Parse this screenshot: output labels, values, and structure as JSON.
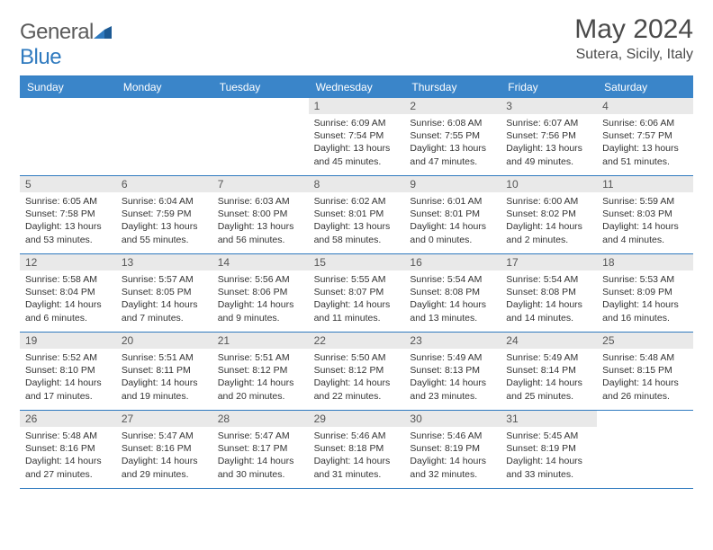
{
  "brand": {
    "text_gray": "General",
    "text_blue": "Blue"
  },
  "title": "May 2024",
  "location": "Sutera, Sicily, Italy",
  "colors": {
    "header_bg": "#3a85c9",
    "rule": "#2f7abf",
    "daynum_bg": "#e9e9e9",
    "text": "#333333",
    "title_text": "#4a4a4a"
  },
  "day_headers": [
    "Sunday",
    "Monday",
    "Tuesday",
    "Wednesday",
    "Thursday",
    "Friday",
    "Saturday"
  ],
  "weeks": [
    [
      null,
      null,
      null,
      {
        "n": "1",
        "sr": "6:09 AM",
        "ss": "7:54 PM",
        "dl": "13 hours and 45 minutes."
      },
      {
        "n": "2",
        "sr": "6:08 AM",
        "ss": "7:55 PM",
        "dl": "13 hours and 47 minutes."
      },
      {
        "n": "3",
        "sr": "6:07 AM",
        "ss": "7:56 PM",
        "dl": "13 hours and 49 minutes."
      },
      {
        "n": "4",
        "sr": "6:06 AM",
        "ss": "7:57 PM",
        "dl": "13 hours and 51 minutes."
      }
    ],
    [
      {
        "n": "5",
        "sr": "6:05 AM",
        "ss": "7:58 PM",
        "dl": "13 hours and 53 minutes."
      },
      {
        "n": "6",
        "sr": "6:04 AM",
        "ss": "7:59 PM",
        "dl": "13 hours and 55 minutes."
      },
      {
        "n": "7",
        "sr": "6:03 AM",
        "ss": "8:00 PM",
        "dl": "13 hours and 56 minutes."
      },
      {
        "n": "8",
        "sr": "6:02 AM",
        "ss": "8:01 PM",
        "dl": "13 hours and 58 minutes."
      },
      {
        "n": "9",
        "sr": "6:01 AM",
        "ss": "8:01 PM",
        "dl": "14 hours and 0 minutes."
      },
      {
        "n": "10",
        "sr": "6:00 AM",
        "ss": "8:02 PM",
        "dl": "14 hours and 2 minutes."
      },
      {
        "n": "11",
        "sr": "5:59 AM",
        "ss": "8:03 PM",
        "dl": "14 hours and 4 minutes."
      }
    ],
    [
      {
        "n": "12",
        "sr": "5:58 AM",
        "ss": "8:04 PM",
        "dl": "14 hours and 6 minutes."
      },
      {
        "n": "13",
        "sr": "5:57 AM",
        "ss": "8:05 PM",
        "dl": "14 hours and 7 minutes."
      },
      {
        "n": "14",
        "sr": "5:56 AM",
        "ss": "8:06 PM",
        "dl": "14 hours and 9 minutes."
      },
      {
        "n": "15",
        "sr": "5:55 AM",
        "ss": "8:07 PM",
        "dl": "14 hours and 11 minutes."
      },
      {
        "n": "16",
        "sr": "5:54 AM",
        "ss": "8:08 PM",
        "dl": "14 hours and 13 minutes."
      },
      {
        "n": "17",
        "sr": "5:54 AM",
        "ss": "8:08 PM",
        "dl": "14 hours and 14 minutes."
      },
      {
        "n": "18",
        "sr": "5:53 AM",
        "ss": "8:09 PM",
        "dl": "14 hours and 16 minutes."
      }
    ],
    [
      {
        "n": "19",
        "sr": "5:52 AM",
        "ss": "8:10 PM",
        "dl": "14 hours and 17 minutes."
      },
      {
        "n": "20",
        "sr": "5:51 AM",
        "ss": "8:11 PM",
        "dl": "14 hours and 19 minutes."
      },
      {
        "n": "21",
        "sr": "5:51 AM",
        "ss": "8:12 PM",
        "dl": "14 hours and 20 minutes."
      },
      {
        "n": "22",
        "sr": "5:50 AM",
        "ss": "8:12 PM",
        "dl": "14 hours and 22 minutes."
      },
      {
        "n": "23",
        "sr": "5:49 AM",
        "ss": "8:13 PM",
        "dl": "14 hours and 23 minutes."
      },
      {
        "n": "24",
        "sr": "5:49 AM",
        "ss": "8:14 PM",
        "dl": "14 hours and 25 minutes."
      },
      {
        "n": "25",
        "sr": "5:48 AM",
        "ss": "8:15 PM",
        "dl": "14 hours and 26 minutes."
      }
    ],
    [
      {
        "n": "26",
        "sr": "5:48 AM",
        "ss": "8:16 PM",
        "dl": "14 hours and 27 minutes."
      },
      {
        "n": "27",
        "sr": "5:47 AM",
        "ss": "8:16 PM",
        "dl": "14 hours and 29 minutes."
      },
      {
        "n": "28",
        "sr": "5:47 AM",
        "ss": "8:17 PM",
        "dl": "14 hours and 30 minutes."
      },
      {
        "n": "29",
        "sr": "5:46 AM",
        "ss": "8:18 PM",
        "dl": "14 hours and 31 minutes."
      },
      {
        "n": "30",
        "sr": "5:46 AM",
        "ss": "8:19 PM",
        "dl": "14 hours and 32 minutes."
      },
      {
        "n": "31",
        "sr": "5:45 AM",
        "ss": "8:19 PM",
        "dl": "14 hours and 33 minutes."
      },
      null
    ]
  ],
  "labels": {
    "sunrise_prefix": "Sunrise: ",
    "sunset_prefix": "Sunset: ",
    "daylight_prefix": "Daylight: "
  }
}
